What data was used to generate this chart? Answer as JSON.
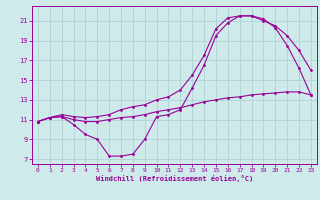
{
  "xlabel": "Windchill (Refroidissement éolien,°C)",
  "background_color": "#ceeaea",
  "grid_color": "#aacece",
  "line_color": "#990099",
  "xlim": [
    -0.5,
    23.5
  ],
  "ylim": [
    6.5,
    22.5
  ],
  "yticks": [
    7,
    9,
    11,
    13,
    15,
    17,
    19,
    21
  ],
  "xticks": [
    0,
    1,
    2,
    3,
    4,
    5,
    6,
    7,
    8,
    9,
    10,
    11,
    12,
    13,
    14,
    15,
    16,
    17,
    18,
    19,
    20,
    21,
    22,
    23
  ],
  "line1_x": [
    0,
    1,
    2,
    3,
    4,
    5,
    6,
    7,
    8,
    9,
    10,
    11,
    12,
    13,
    14,
    15,
    16,
    17,
    18,
    19,
    20,
    21,
    22,
    23
  ],
  "line1_y": [
    10.8,
    11.2,
    11.3,
    10.5,
    9.5,
    9.0,
    7.3,
    7.3,
    7.5,
    9.0,
    11.3,
    11.5,
    12.0,
    14.2,
    16.5,
    19.5,
    20.8,
    21.5,
    21.5,
    21.2,
    20.3,
    18.5,
    16.2,
    13.5
  ],
  "line2_x": [
    0,
    1,
    2,
    3,
    4,
    5,
    6,
    7,
    8,
    9,
    10,
    11,
    12,
    13,
    14,
    15,
    16,
    17,
    18,
    19,
    20,
    21,
    22,
    23
  ],
  "line2_y": [
    10.8,
    11.2,
    11.5,
    11.3,
    11.2,
    11.3,
    11.5,
    12.0,
    12.3,
    12.5,
    13.0,
    13.3,
    14.0,
    15.5,
    17.5,
    20.2,
    21.3,
    21.5,
    21.5,
    21.0,
    20.5,
    19.5,
    18.0,
    16.0
  ],
  "line3_x": [
    0,
    1,
    2,
    3,
    4,
    5,
    6,
    7,
    8,
    9,
    10,
    11,
    12,
    13,
    14,
    15,
    16,
    17,
    18,
    19,
    20,
    21,
    22,
    23
  ],
  "line3_y": [
    10.8,
    11.2,
    11.3,
    11.0,
    10.8,
    10.8,
    11.0,
    11.2,
    11.3,
    11.5,
    11.8,
    12.0,
    12.2,
    12.5,
    12.8,
    13.0,
    13.2,
    13.3,
    13.5,
    13.6,
    13.7,
    13.8,
    13.8,
    13.5
  ]
}
